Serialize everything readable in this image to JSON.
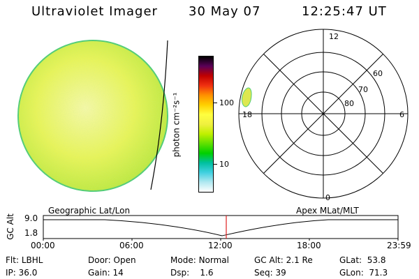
{
  "header": {
    "instrument": "Ultraviolet Imager",
    "date": "30 May 07",
    "time": "12:25:47 UT"
  },
  "colorbar": {
    "unit_label": "photon cm⁻²s⁻¹",
    "ticks": [
      "100",
      "10"
    ],
    "colors": [
      "#000000",
      "#5a0058",
      "#c00000",
      "#f03010",
      "#ff9000",
      "#ffd000",
      "#ffff40",
      "#f0f040",
      "#c0f000",
      "#60e000",
      "#00d000",
      "#00c0a0",
      "#40d0e0",
      "#b0e8f0",
      "#ffffff"
    ]
  },
  "polar_plot": {
    "labels": {
      "top": "12",
      "left": "18",
      "right": "6",
      "bottom": "0",
      "lat60": "60",
      "lat70": "70",
      "lat80": "80"
    }
  },
  "timeline": {
    "ylabel": "GC Alt",
    "y_top": "9.0",
    "y_bottom": "1.8",
    "left_caption": "Geographic Lat/Lon",
    "right_caption": "Apex MLat/MLT",
    "xticks": [
      "00:00",
      "06:00",
      "12:00",
      "18:00",
      "23:59"
    ],
    "marker_time": "12:25"
  },
  "status": {
    "flt_label": "Flt:",
    "flt_value": "LBHL",
    "ip_label": "IP:",
    "ip_value": "36.0",
    "door_label": "Door:",
    "door_value": "Open",
    "gain_label": "Gain:",
    "gain_value": "14",
    "mode_label": "Mode:",
    "mode_value": "Normal",
    "dsp_label": "Dsp:",
    "dsp_value": "1.6",
    "gcalt_label": "GC Alt:",
    "gcalt_value": "2.1 Re",
    "seq_label": "Seq:",
    "seq_value": "39",
    "glat_label": "GLat:",
    "glat_value": "53.8",
    "glon_label": "GLon:",
    "glon_value": "71.3"
  },
  "colors": {
    "disk_fill": "#e6f25a",
    "disk_edge": "#52cc78",
    "marker": "#e02020"
  }
}
